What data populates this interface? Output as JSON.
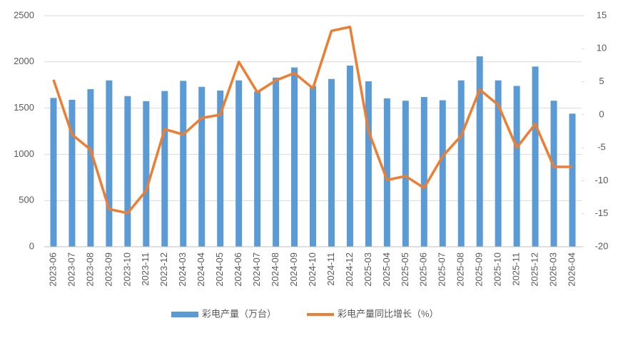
{
  "chart_data": {
    "type": "combo",
    "categories": [
      "2023-06",
      "2023-07",
      "2023-08",
      "2023-09",
      "2023-10",
      "2023-11",
      "2023-12",
      "2024-03",
      "2024-04",
      "2024-05",
      "2024-06",
      "2024-07",
      "2024-08",
      "2024-09",
      "2024-10",
      "2024-11",
      "2024-12",
      "2025-03",
      "2025-04",
      "2025-05",
      "2025-06",
      "2025-07",
      "2025-08",
      "2025-09",
      "2025-10",
      "2025-11",
      "2025-12",
      "2026-03",
      "2026-04"
    ],
    "series": [
      {
        "name": "彩电产量（万台）",
        "color": "#5b9bd5",
        "values": [
          1610,
          1590,
          1705,
          1800,
          1630,
          1575,
          1685,
          1795,
          1730,
          1690,
          1800,
          1680,
          1830,
          1940,
          1740,
          1815,
          1960,
          1790,
          1605,
          1580,
          1620,
          1585,
          1800,
          2060,
          1800,
          1740,
          1950,
          1580,
          1440
        ]
      },
      {
        "name": "彩电产量同比增长（%）",
        "color": "#ed7d31",
        "axis": "y2",
        "values": [
          5.3,
          -3,
          -5.3,
          -14.3,
          -14.9,
          -11.5,
          -2.2,
          -3,
          -0.5,
          0,
          8,
          3.4,
          5.2,
          6.3,
          4,
          12.7,
          13.3,
          -2.5,
          -9.9,
          -9.3,
          -11.1,
          -6.3,
          -3.2,
          3.8,
          1.5,
          -5,
          -1.4,
          -7.9,
          -7.9
        ]
      }
    ],
    "ylim": [
      0,
      2500
    ],
    "yticks": [
      0,
      500,
      1000,
      1500,
      2000,
      2500
    ],
    "y2lim": [
      -20,
      15
    ],
    "y2ticks": [
      -20,
      -15,
      -10,
      -5,
      0,
      5,
      10,
      15
    ],
    "grid": true,
    "legend": "bottom"
  }
}
